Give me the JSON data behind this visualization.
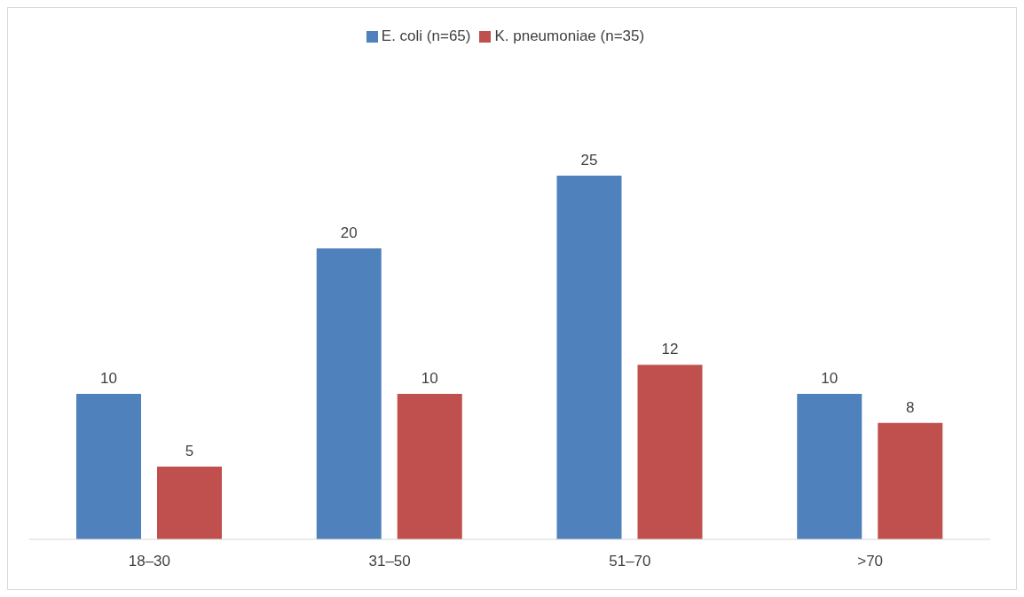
{
  "chart_data": {
    "type": "bar",
    "categories": [
      "18–30",
      "31–50",
      "51–70",
      ">70"
    ],
    "series": [
      {
        "name": "E. coli (n=65)",
        "color": "#4f81bd",
        "values": [
          10,
          20,
          25,
          10
        ]
      },
      {
        "name": "K. pneumoniae (n=35)",
        "color": "#c0504d",
        "values": [
          5,
          10,
          12,
          8
        ]
      }
    ],
    "data_labels": true,
    "legend": "top"
  }
}
